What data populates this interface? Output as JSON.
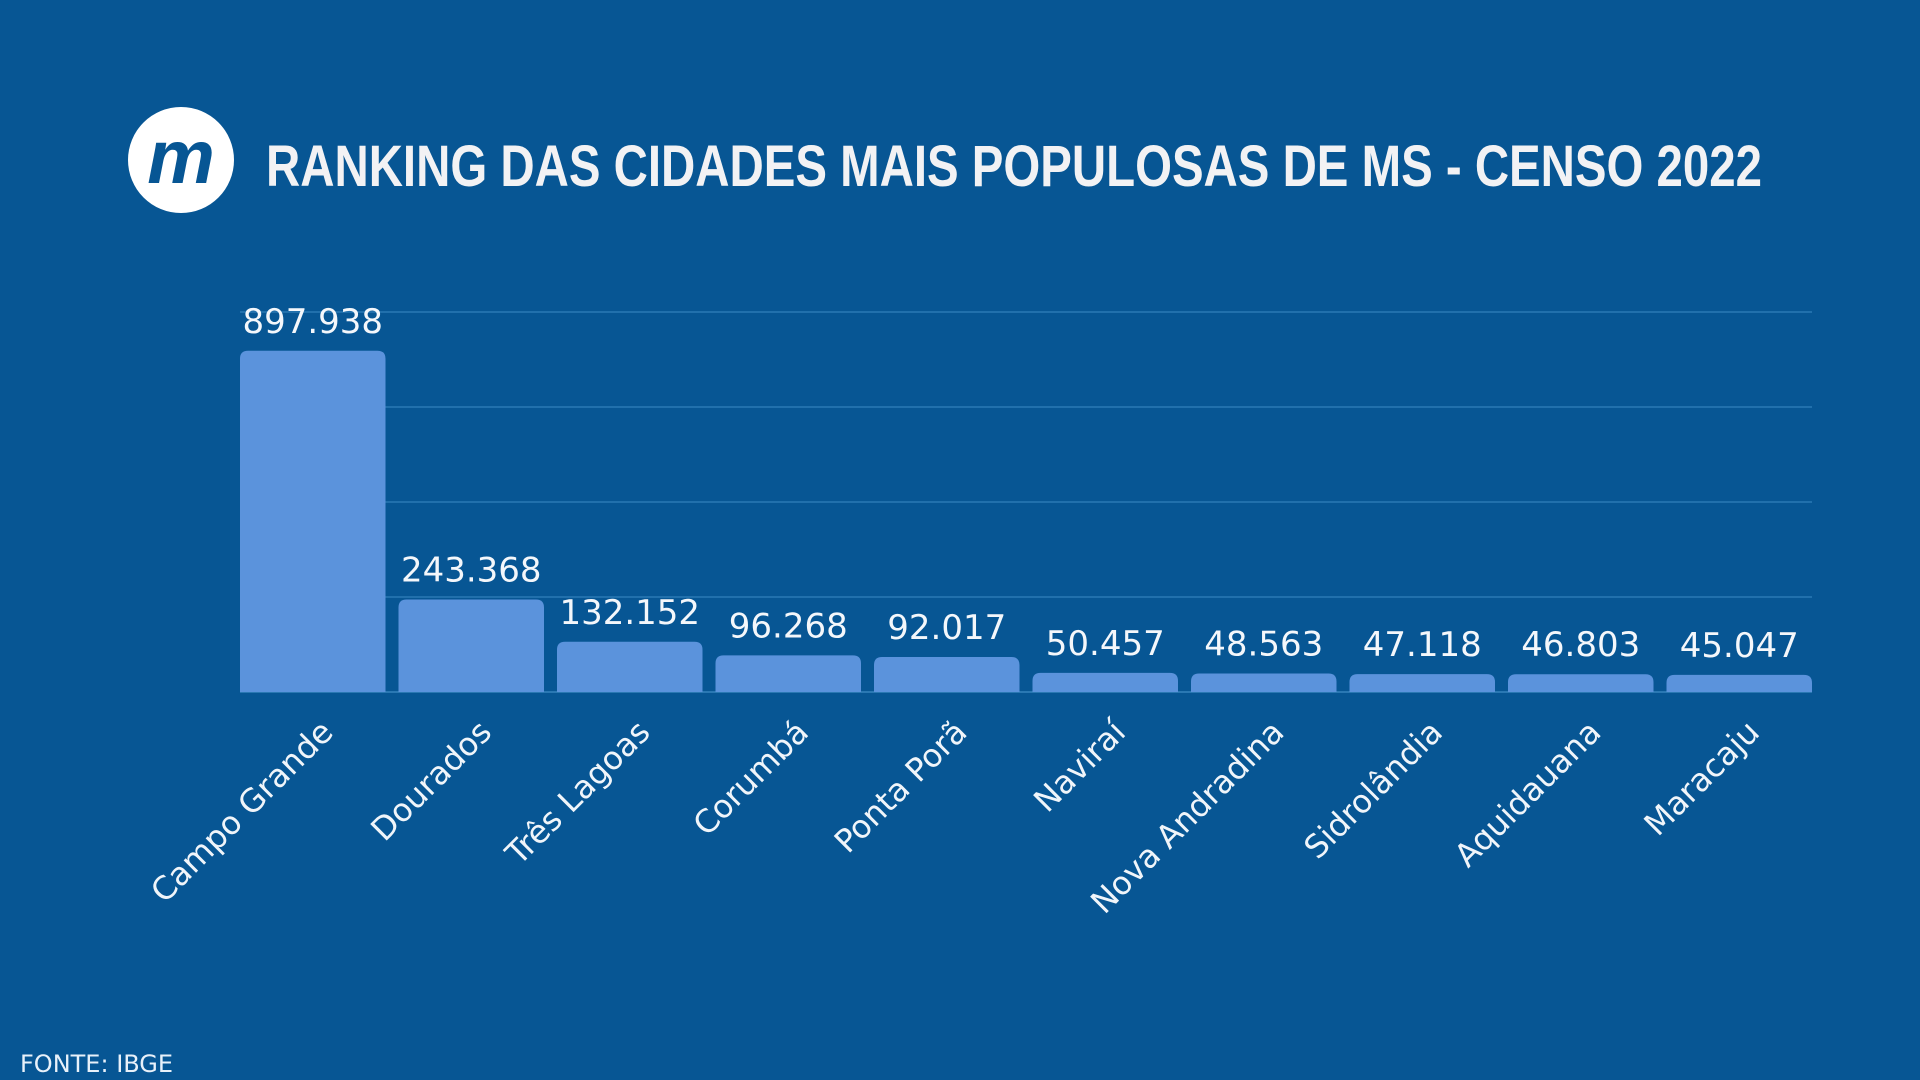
{
  "header": {
    "logo_letter": "m",
    "title": "RANKING DAS CIDADES MAIS POPULOSAS DE MS - CENSO 2022"
  },
  "footer": {
    "source": "FONTE: IBGE"
  },
  "colors": {
    "background": "#075694",
    "bar": "#5b93dc",
    "grid": "#2a78b3",
    "text": "#f4f7fb"
  },
  "chart_data": {
    "type": "bar",
    "title": "RANKING DAS CIDADES MAIS POPULOSAS DE MS - CENSO 2022",
    "xlabel": "",
    "ylabel": "",
    "categories": [
      "Campo Grande",
      "Dourados",
      "Três Lagoas",
      "Corumbá",
      "Ponta Porã",
      "Naviraí",
      "Nova Andradina",
      "Sidrolândia",
      "Aquidauana",
      "Maracaju"
    ],
    "values": [
      897938,
      243368,
      132152,
      96268,
      92017,
      50457,
      48563,
      47118,
      46803,
      45047
    ],
    "value_labels": [
      "897.938",
      "243.368",
      "132.152",
      "96.268",
      "92.017",
      "50.457",
      "48.563",
      "47.118",
      "46.803",
      "45.047"
    ],
    "ylim": [
      0,
      1000000
    ],
    "gridlines": [
      250000,
      500000,
      750000,
      1000000
    ],
    "grid": true,
    "legend": "none",
    "source": "FONTE: IBGE"
  }
}
